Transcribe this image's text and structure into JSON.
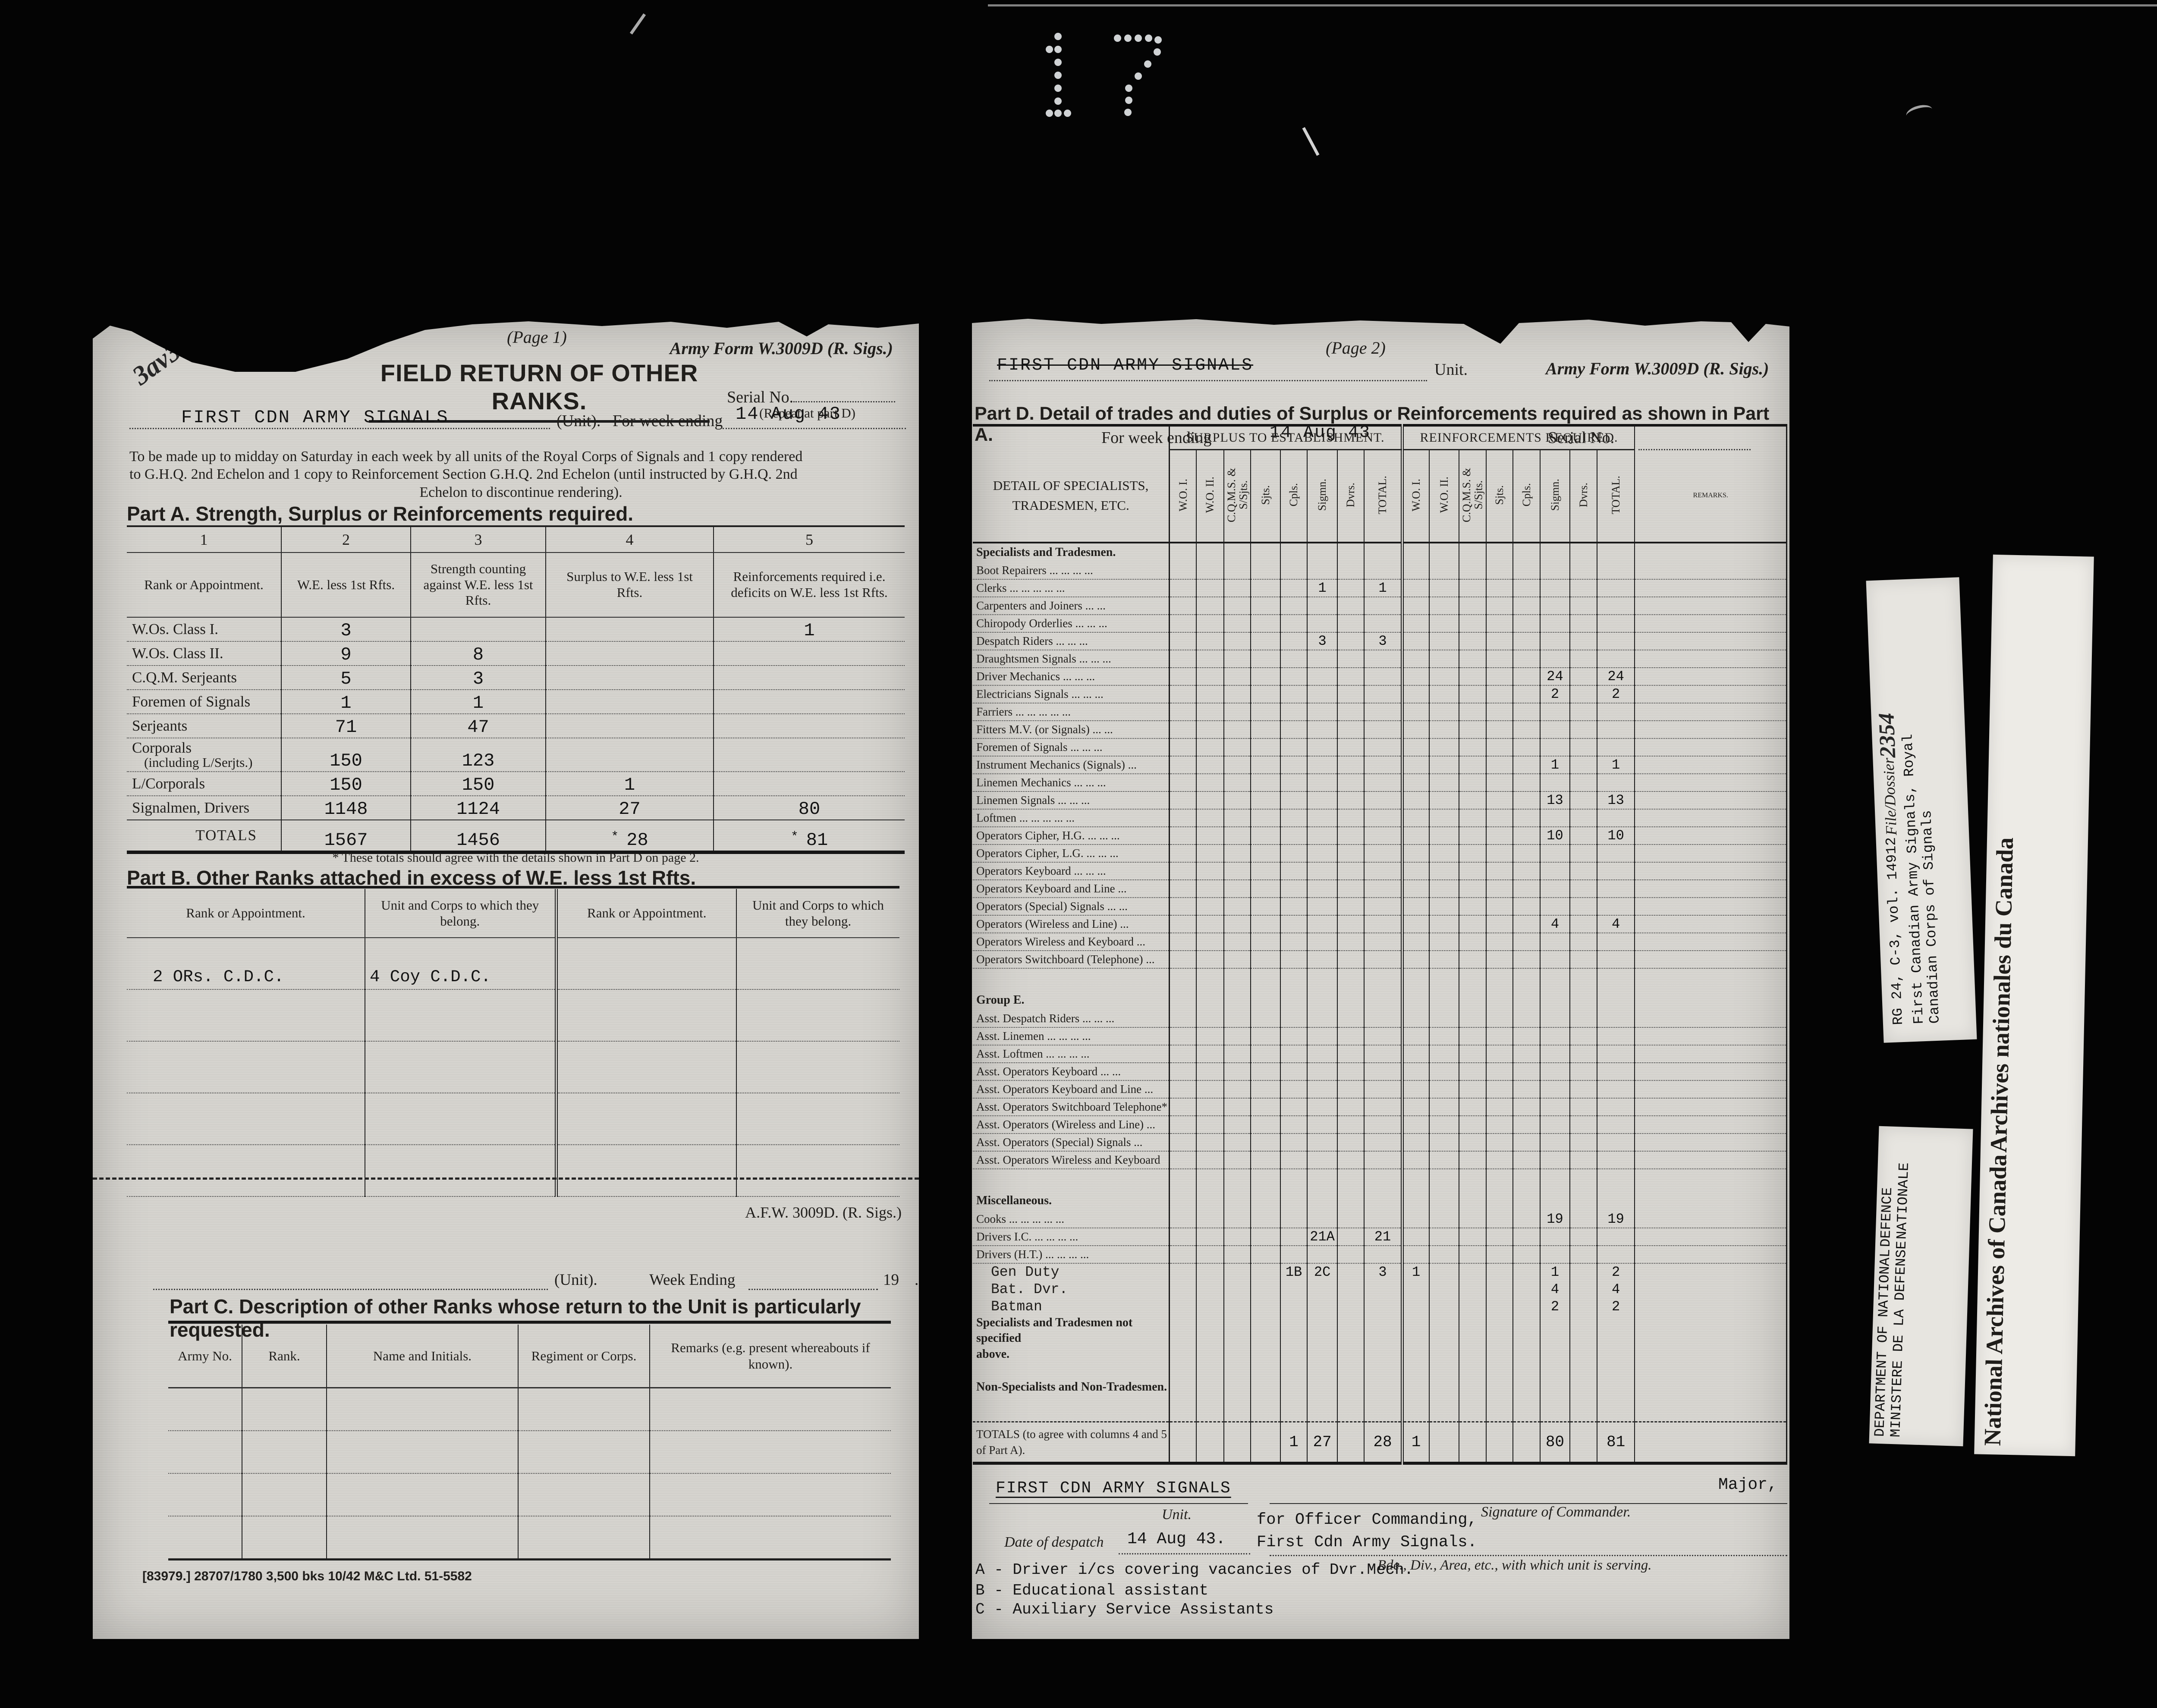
{
  "frame": {
    "number": "17"
  },
  "page1": {
    "page_label": "(Page 1)",
    "form_ref": "Army Form W.3009D (R. Sigs.)",
    "title": "FIELD RETURN OF OTHER RANKS.",
    "serial_label": "Serial No.",
    "serial_note": "(Repeat at part D)",
    "handwritten_mark": "3av3",
    "unit_value": "FIRST CDN ARMY SIGNALS",
    "unit_label": "(Unit).",
    "week_label": "For week ending",
    "week_value": "14 Aug 43",
    "instructions": [
      "To be made up to midday on Saturday in each week by all units of the Royal Corps of Signals and 1 copy rendered",
      "to G.H.Q. 2nd Echelon and  1 copy to Reinforcement Section G.H.Q. 2nd Echelon (until instructed by G.H.Q. 2nd",
      "Echelon to discontinue rendering)."
    ],
    "partA": {
      "title": "Part A.   Strength, Surplus or Reinforcements required.",
      "col_numbers": [
        "1",
        "2",
        "3",
        "4",
        "5"
      ],
      "headers": [
        "Rank or Appointment.",
        "W.E. less 1st Rfts.",
        "Strength counting against W.E. less 1st Rfts.",
        "Surplus to W.E. less 1st Rfts.",
        "Reinforcements required i.e. deficits on  W.E.  less  1st  Rfts."
      ],
      "rows": [
        {
          "r": "W.Os.   Class I.",
          "c2": "3",
          "c3": "",
          "c4": "",
          "c5": "1"
        },
        {
          "r": "W.Os.   Class II.",
          "c2": "9",
          "c3": "8",
          "c4": "",
          "c5": ""
        },
        {
          "r": "C.Q.M. Serjeants",
          "c2": "5",
          "c3": "3",
          "c4": "",
          "c5": ""
        },
        {
          "r": "Foremen of Signals",
          "c2": "1",
          "c3": "1",
          "c4": "",
          "c5": ""
        },
        {
          "r": "Serjeants",
          "c2": "71",
          "c3": "47",
          "c4": "",
          "c5": ""
        },
        {
          "r": "Corporals",
          "r2": "(including L/Serjts.)",
          "c2": "150",
          "c3": "123",
          "c4": "",
          "c5": ""
        },
        {
          "r": "L/Corporals",
          "c2": "150",
          "c3": "150",
          "c4": "1",
          "c5": ""
        },
        {
          "r": "Signalmen, Drivers",
          "c2": "1148",
          "c3": "1124",
          "c4": "27",
          "c5": "80"
        }
      ],
      "totals": {
        "label": "TOTALS",
        "c2": "1567",
        "c3": "1456",
        "star": "*",
        "c4": "28",
        "c5": "81"
      },
      "footnote": "* These totals should agree with the details shown in Part D on page 2."
    },
    "partB": {
      "title": "Part B.   Other Ranks attached in excess of W.E. less 1st Rfts.",
      "headers": [
        "Rank or Appointment.",
        "Unit and Corps to which they belong.",
        "Rank or Appointment.",
        "Unit and Corps to which they belong."
      ],
      "row1": {
        "c1": "2 ORs.  C.D.C.",
        "c2": "4 Coy C.D.C."
      }
    },
    "partC": {
      "form_ref": "A.F.W. 3009D.   (R. Sigs.)",
      "unit_label": "(Unit).",
      "week_label": "Week Ending",
      "year_label": "19",
      "dot_label": ".",
      "title": "Part C.   Description of other Ranks whose return to the Unit is particularly requested.",
      "headers": [
        "Army No.",
        "Rank.",
        "Name and Initials.",
        "Regiment or Corps.",
        "Remarks (e.g. present whereabouts if known)."
      ]
    },
    "imprint": "[83979.] 28707/1780 3,500 bks 10/42 M&C Ltd. 51-5582"
  },
  "page2": {
    "page_label": "(Page 2)",
    "unit_value": "FIRST CDN ARMY SIGNALS",
    "unit_label": "Unit.",
    "form_ref": "Army Form W.3009D (R. Sigs.)",
    "week_label": "For week ending",
    "week_value": "14 Aug 43",
    "serial_label": "Serial No.",
    "partD": {
      "title": "Part D.   Detail of trades and duties of Surplus or Reinforcements required as shown in Part A.",
      "detail_header": [
        "DETAIL OF SPECIALISTS,",
        "TRADESMEN, ETC."
      ],
      "group1": "SURPLUS TO ESTABLISHMENT.",
      "group2": "REINFORCEMENTS REQUIRED.",
      "subcols": [
        "W.O. I.",
        "W.O. II.",
        "C.Q.M.S. & S/Sjts.",
        "Sjts.",
        "Cpls.",
        "Sigmn.",
        "Dvrs.",
        "TOTAL."
      ],
      "remarks_header": "REMARKS.",
      "rows": [
        {
          "t": "sec",
          "label": "Specialists and Tradesmen."
        },
        {
          "t": "r",
          "label": "Boot Repairers ...    ...    ...    ..."
        },
        {
          "t": "r",
          "label": "Clerks    ...    ...    ...    ...    ...",
          "c": {
            "5": "1",
            "7": "1"
          }
        },
        {
          "t": "r",
          "label": "Carpenters and Joiners    ...    ..."
        },
        {
          "t": "r",
          "label": "Chiropody Orderlies    ...    ...    ..."
        },
        {
          "t": "r",
          "label": "Despatch Riders    ...    ...    ...",
          "c": {
            "5": "3",
            "7": "3"
          }
        },
        {
          "t": "r",
          "label": "Draughtsmen Signals    ...    ...    ..."
        },
        {
          "t": "r",
          "label": "Driver Mechanics    ...    ...    ...",
          "c": {
            "13": "24",
            "15": "24"
          }
        },
        {
          "t": "r",
          "label": "Electricians Signals    ...    ...    ...",
          "c": {
            "13": "2",
            "15": "2"
          }
        },
        {
          "t": "r",
          "label": "Farriers  ...    ...    ...    ...    ..."
        },
        {
          "t": "r",
          "label": "Fitters M.V. (or Signals)    ...    ..."
        },
        {
          "t": "r",
          "label": "Foremen of Signals    ...    ...    ..."
        },
        {
          "t": "r",
          "label": "Instrument Mechanics (Signals)    ...",
          "c": {
            "13": "1",
            "15": "1"
          }
        },
        {
          "t": "r",
          "label": "Linemen Mechanics    ...    ...    ..."
        },
        {
          "t": "r",
          "label": "Linemen Signals    ...    ...    ...",
          "c": {
            "13": "13",
            "15": "13"
          }
        },
        {
          "t": "r",
          "label": "Loftmen  ...    ...    ...    ...    ..."
        },
        {
          "t": "r",
          "label": "Operators Cipher, H.G. ...    ...    ...",
          "c": {
            "13": "10",
            "15": "10"
          }
        },
        {
          "t": "r",
          "label": "Operators Cipher, L.G. ...    ...    ..."
        },
        {
          "t": "r",
          "label": "Operators Keyboard    ...    ...    ..."
        },
        {
          "t": "r",
          "label": "Operators Keyboard and Line    ..."
        },
        {
          "t": "r",
          "label": "Operators (Special) Signals    ...    ..."
        },
        {
          "t": "r",
          "label": "Operators (Wireless and Line)    ...",
          "c": {
            "13": "4",
            "15": "4"
          }
        },
        {
          "t": "r",
          "label": "Operators Wireless and Keyboard  ..."
        },
        {
          "t": "r",
          "label": "Operators Switchboard (Telephone)  ..."
        },
        {
          "t": "sp",
          "h": 52
        },
        {
          "t": "sec",
          "label": "Group E."
        },
        {
          "t": "r",
          "label": "Asst. Despatch Riders ...    ...    ..."
        },
        {
          "t": "r",
          "label": "Asst. Linemen  ...    ...    ...    ..."
        },
        {
          "t": "r",
          "label": "Asst. Loftmen  ...    ...    ...    ..."
        },
        {
          "t": "r",
          "label": "Asst. Operators Keyboard    ...    ..."
        },
        {
          "t": "r",
          "label": "Asst. Operators Keyboard and Line ..."
        },
        {
          "t": "r",
          "label": "Asst. Operators Switchboard Telephone*"
        },
        {
          "t": "r",
          "label": "Asst. Operators (Wireless and Line) ..."
        },
        {
          "t": "r",
          "label": "Asst. Operators (Special) Signals    ..."
        },
        {
          "t": "r",
          "label": "Asst. Operators Wireless and Keyboard"
        },
        {
          "t": "sp",
          "h": 52
        },
        {
          "t": "sec",
          "label": "Miscellaneous."
        },
        {
          "t": "r",
          "label": "Cooks    ...    ...    ...    ...    ...",
          "c": {
            "13": "19",
            "15": "19"
          }
        },
        {
          "t": "r",
          "label": "Drivers I.C.    ...    ...    ...    ...",
          "c": {
            "5": "21A",
            "7": "21"
          }
        },
        {
          "t": "r",
          "label": "Drivers (H.T.)    ...    ...    ...    ..."
        },
        {
          "t": "typed",
          "label": "Gen Duty",
          "c": {
            "4": "1B",
            "5": "2C",
            "7": "3",
            "8": "1",
            "13": "1",
            "15": "2"
          }
        },
        {
          "t": "typed",
          "label": "Bat. Dvr.",
          "c": {
            "13": "4",
            "15": "4"
          }
        },
        {
          "t": "typed",
          "label": "Batman",
          "c": {
            "13": "2",
            "15": "2"
          }
        },
        {
          "t": "lbl",
          "label": "Specialists and Tradesmen not specified",
          "label2": "above."
        },
        {
          "t": "sp",
          "h": 40
        },
        {
          "t": "lbl",
          "label": "Non-Specialists and Non-Tradesmen."
        },
        {
          "t": "sp",
          "h": 62
        },
        {
          "t": "tot",
          "label": "TOTALS (to agree with columns 4 and 5",
          "label2": "of Part A).",
          "c": {
            "4": "1",
            "5": "27",
            "7": "28",
            "8": "1",
            "13": "80",
            "15": "81"
          }
        }
      ]
    },
    "signature": {
      "unit_value": "FIRST CDN ARMY SIGNALS",
      "unit_label": "Unit.",
      "rank_value": "Major,",
      "sig_label": "Signature of Commander.",
      "for_oc": "for Officer Commanding,",
      "oc_unit": "First Cdn Army Signals.",
      "date_label": "Date of despatch",
      "date_value": "14 Aug 43.",
      "serving_label": "Bde., Div., Area, etc., with which unit is serving."
    },
    "notes": [
      "A - Driver i/cs covering vacancies of Dvr.Mech.",
      "B - Educational assistant",
      "C - Auxiliary Service Assistants"
    ]
  },
  "sidebar": {
    "stamp_archival": [
      "RG 24, C-3, vol. 14912",
      "File/Dossier",
      "2354",
      "First Canadian Army Signals, Royal",
      "Canadian Corps of Signals"
    ],
    "stamp_archives": [
      "National Archives of Canada",
      "Archives nationales du Canada"
    ],
    "stamp_department": [
      "DEPARTMENT OF NATIONAL",
      "DEFENCE",
      "MINISTERE DE LA DEFENSE",
      "NATIONALE"
    ]
  }
}
